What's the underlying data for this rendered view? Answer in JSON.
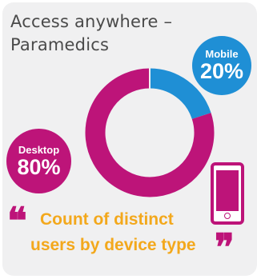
{
  "title": {
    "line1": "Access anywhere –",
    "line2": "Paramedics"
  },
  "chart_data": {
    "type": "pie",
    "subtype": "donut",
    "categories": [
      "Mobile",
      "Desktop"
    ],
    "values": [
      20,
      80
    ],
    "value_labels": [
      "20%",
      "80%"
    ],
    "colors": [
      "#1f8fd5",
      "#bd1479"
    ]
  },
  "badges": {
    "mobile": {
      "label": "Mobile",
      "value": "20%"
    },
    "desktop": {
      "label": "Desktop",
      "value": "80%"
    }
  },
  "caption": {
    "line1": "Count of distinct",
    "line2": "users by device type",
    "open_quote": "❝",
    "close_quote": "❞"
  },
  "icons": {
    "phone": "mobile-phone-icon"
  }
}
